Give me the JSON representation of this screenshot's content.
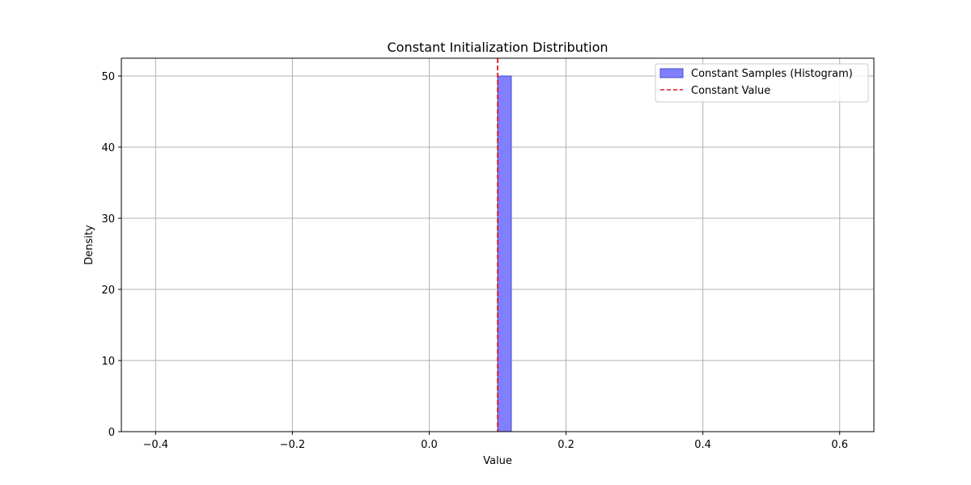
{
  "chart_data": {
    "type": "bar",
    "title": "Constant Initialization Distribution",
    "xlabel": "Value",
    "ylabel": "Density",
    "xlim": [
      -0.45,
      0.65
    ],
    "ylim": [
      0,
      52.5
    ],
    "xticks": [
      -0.4,
      -0.2,
      0.0,
      0.2,
      0.4,
      0.6
    ],
    "xtick_labels": [
      "−0.4",
      "−0.2",
      "0.0",
      "0.2",
      "0.4",
      "0.6"
    ],
    "yticks": [
      0,
      10,
      20,
      30,
      40,
      50
    ],
    "ytick_labels": [
      "0",
      "10",
      "20",
      "30",
      "40",
      "50"
    ],
    "grid": true,
    "legend_position": "top-right",
    "series": [
      {
        "name": "Constant Samples (Histogram)",
        "type": "histogram",
        "bins": [
          {
            "x0": 0.1,
            "x1": 0.12,
            "value": 50
          }
        ],
        "fill_color": "#7f7fff",
        "edge_color": "#4b4bc8"
      },
      {
        "name": "Constant Value",
        "type": "vline",
        "x": 0.1,
        "color": "#e41a1a",
        "style": "dashed"
      }
    ]
  }
}
